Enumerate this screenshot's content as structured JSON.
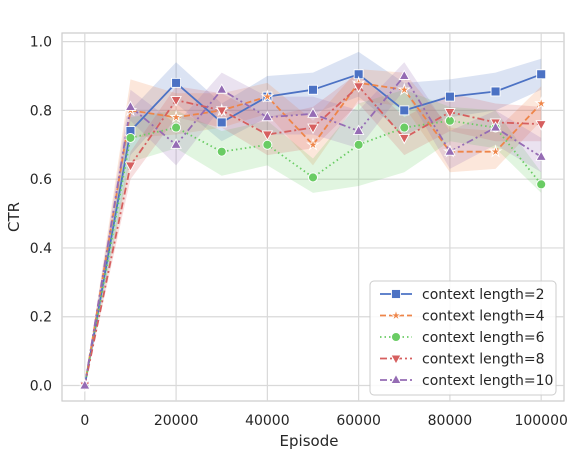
{
  "chart_data": {
    "type": "line",
    "xlabel": "Episode",
    "ylabel": "CTR",
    "xlim": [
      -5000,
      105000
    ],
    "ylim": [
      -0.045,
      1.025
    ],
    "xticks": [
      0,
      20000,
      40000,
      60000,
      80000,
      100000
    ],
    "xtick_labels": [
      "0",
      "20000",
      "40000",
      "60000",
      "80000",
      "100000"
    ],
    "yticks": [
      0.0,
      0.2,
      0.4,
      0.6,
      0.8,
      1.0
    ],
    "ytick_labels": [
      "0.0",
      "0.2",
      "0.4",
      "0.6",
      "0.8",
      "1.0"
    ],
    "grid": true,
    "legend_position": "lower-right",
    "x": [
      0,
      10000,
      20000,
      30000,
      40000,
      50000,
      60000,
      70000,
      80000,
      90000,
      100000
    ],
    "series": [
      {
        "name": "context length=2",
        "color": "#4c72c4",
        "marker": "square",
        "dash": "solid",
        "values": [
          0.0,
          0.74,
          0.88,
          0.765,
          0.84,
          0.86,
          0.905,
          0.8,
          0.84,
          0.855,
          0.905
        ],
        "lower": [
          0.0,
          0.67,
          0.82,
          0.71,
          0.78,
          0.79,
          0.84,
          0.73,
          0.78,
          0.8,
          0.86
        ],
        "upper": [
          0.0,
          0.8,
          0.94,
          0.82,
          0.9,
          0.91,
          0.97,
          0.88,
          0.89,
          0.91,
          0.95
        ]
      },
      {
        "name": "context length=4",
        "color": "#ee8549",
        "marker": "star",
        "dash": "dashed",
        "values": [
          0.0,
          0.8,
          0.78,
          0.8,
          0.84,
          0.7,
          0.88,
          0.86,
          0.68,
          0.68,
          0.82
        ],
        "lower": [
          0.0,
          0.72,
          0.73,
          0.75,
          0.79,
          0.64,
          0.83,
          0.81,
          0.62,
          0.63,
          0.77
        ],
        "upper": [
          0.0,
          0.89,
          0.85,
          0.85,
          0.88,
          0.77,
          0.92,
          0.91,
          0.75,
          0.74,
          0.87
        ]
      },
      {
        "name": "context length=6",
        "color": "#6acc64",
        "marker": "circle",
        "dash": "dotted",
        "values": [
          0.0,
          0.72,
          0.75,
          0.68,
          0.7,
          0.605,
          0.7,
          0.75,
          0.77,
          0.75,
          0.585
        ],
        "lower": [
          0.0,
          0.65,
          0.69,
          0.61,
          0.64,
          0.56,
          0.58,
          0.62,
          0.71,
          0.69,
          0.56
        ],
        "upper": [
          0.0,
          0.78,
          0.8,
          0.74,
          0.77,
          0.66,
          0.82,
          0.86,
          0.81,
          0.8,
          0.62
        ]
      },
      {
        "name": "context length=8",
        "color": "#d65f5f",
        "marker": "triangle-down",
        "dash": "dashdot",
        "values": [
          0.0,
          0.64,
          0.83,
          0.8,
          0.73,
          0.75,
          0.87,
          0.72,
          0.795,
          0.765,
          0.76
        ],
        "lower": [
          0.0,
          0.6,
          0.78,
          0.75,
          0.67,
          0.69,
          0.82,
          0.67,
          0.74,
          0.71,
          0.71
        ],
        "upper": [
          0.0,
          0.68,
          0.87,
          0.85,
          0.78,
          0.81,
          0.91,
          0.78,
          0.85,
          0.82,
          0.81
        ]
      },
      {
        "name": "context length=10",
        "color": "#956cb4",
        "marker": "triangle-up",
        "dash": "dashdotdot",
        "values": [
          0.0,
          0.81,
          0.7,
          0.86,
          0.78,
          0.79,
          0.74,
          0.9,
          0.68,
          0.75,
          0.665
        ],
        "lower": [
          0.0,
          0.77,
          0.64,
          0.81,
          0.73,
          0.73,
          0.69,
          0.86,
          0.63,
          0.7,
          0.62
        ],
        "upper": [
          0.0,
          0.86,
          0.76,
          0.91,
          0.84,
          0.84,
          0.8,
          0.94,
          0.74,
          0.8,
          0.72
        ]
      }
    ]
  }
}
